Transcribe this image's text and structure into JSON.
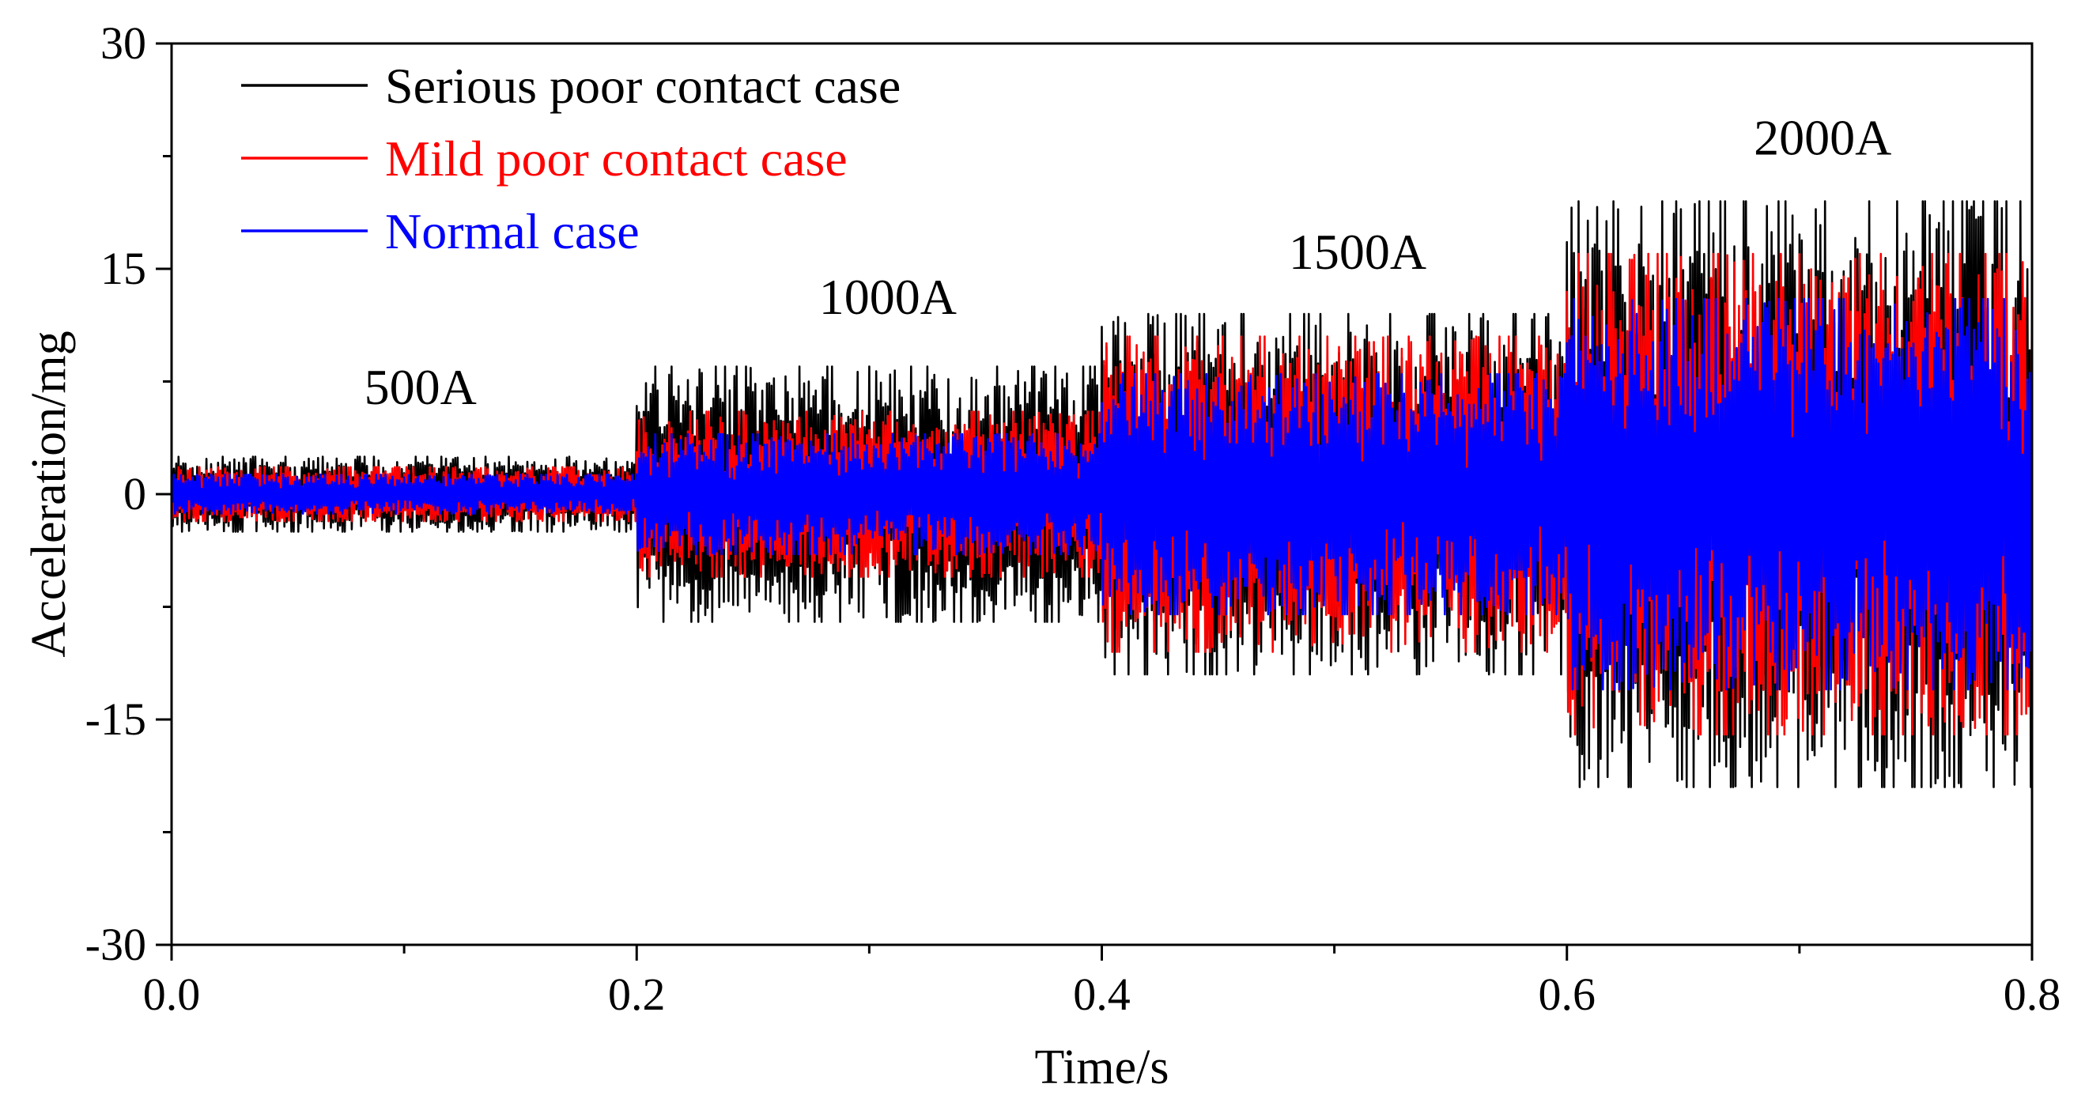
{
  "chart_data": {
    "type": "line",
    "title": "",
    "xlabel": "Time/s",
    "ylabel": "Acceleration/mg",
    "xlim": [
      0.0,
      0.8
    ],
    "ylim": [
      -30,
      30
    ],
    "xticks": [
      0.0,
      0.2,
      0.4,
      0.6,
      0.8
    ],
    "xtick_labels": [
      "0.0",
      "0.2",
      "0.4",
      "0.6",
      "0.8"
    ],
    "yticks": [
      30,
      15,
      0,
      -15,
      -30
    ],
    "ytick_labels": [
      "30",
      "15",
      "0",
      "-15",
      "-30"
    ],
    "grid": false,
    "legend_position": "top-left",
    "series": [
      {
        "name": "Serious poor contact case",
        "color": "#000000",
        "segments": [
          {
            "x_start": 0.0,
            "x_end": 0.2,
            "amplitude": 2.5
          },
          {
            "x_start": 0.2,
            "x_end": 0.4,
            "amplitude": 8.5
          },
          {
            "x_start": 0.4,
            "x_end": 0.6,
            "amplitude": 12.0
          },
          {
            "x_start": 0.6,
            "x_end": 0.8,
            "amplitude": 19.5
          }
        ]
      },
      {
        "name": "Mild poor contact case",
        "color": "#ff0000",
        "segments": [
          {
            "x_start": 0.0,
            "x_end": 0.2,
            "amplitude": 1.8
          },
          {
            "x_start": 0.2,
            "x_end": 0.4,
            "amplitude": 5.5
          },
          {
            "x_start": 0.4,
            "x_end": 0.6,
            "amplitude": 10.5
          },
          {
            "x_start": 0.6,
            "x_end": 0.8,
            "amplitude": 16.0
          }
        ]
      },
      {
        "name": "Normal case",
        "color": "#0000ff",
        "segments": [
          {
            "x_start": 0.0,
            "x_end": 0.2,
            "amplitude": 1.3
          },
          {
            "x_start": 0.2,
            "x_end": 0.4,
            "amplitude": 4.0
          },
          {
            "x_start": 0.4,
            "x_end": 0.6,
            "amplitude": 8.0
          },
          {
            "x_start": 0.6,
            "x_end": 0.8,
            "amplitude": 13.0
          }
        ]
      }
    ],
    "annotations": [
      {
        "text": "500A",
        "x": 0.107,
        "y": 6.0
      },
      {
        "text": "1000A",
        "x": 0.308,
        "y": 12.0
      },
      {
        "text": "1500A",
        "x": 0.51,
        "y": 15.0
      },
      {
        "text": "2000A",
        "x": 0.71,
        "y": 22.6
      }
    ]
  }
}
